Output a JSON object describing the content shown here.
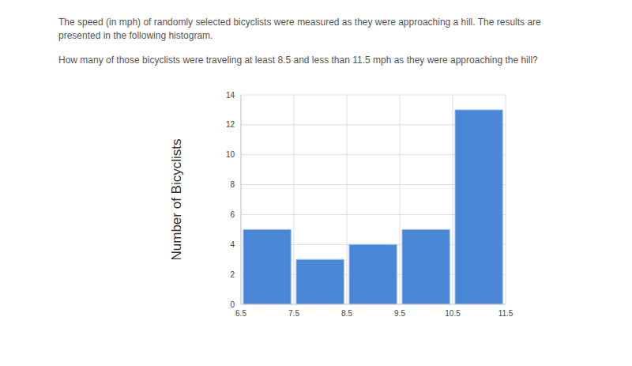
{
  "chart_data": {
    "type": "histogram",
    "title": "The speed (in mph) of randomly selected bicyclists were measured as they were approaching a hill.  The results are presented in the following histogram.",
    "subtitle": "How many of those bicyclists were traveling at least 8.5 and less than 11.5 mph as they were approaching the hill?",
    "y_label": "Number of Bicyclists",
    "bins": [
      6.5,
      7.5,
      8.5,
      9.5,
      10.5,
      11.5
    ],
    "values": [
      5,
      3,
      4,
      5,
      13
    ],
    "color": "#4a86d6",
    "xlim": [
      6.5,
      11.5
    ],
    "xticks": [
      6.5,
      7.5,
      8.5,
      9.5,
      10.5,
      11.5
    ],
    "ylim": [
      0,
      14
    ],
    "yticks": [
      0,
      2,
      4,
      6,
      8,
      10,
      12,
      14
    ],
    "grid": true
  }
}
